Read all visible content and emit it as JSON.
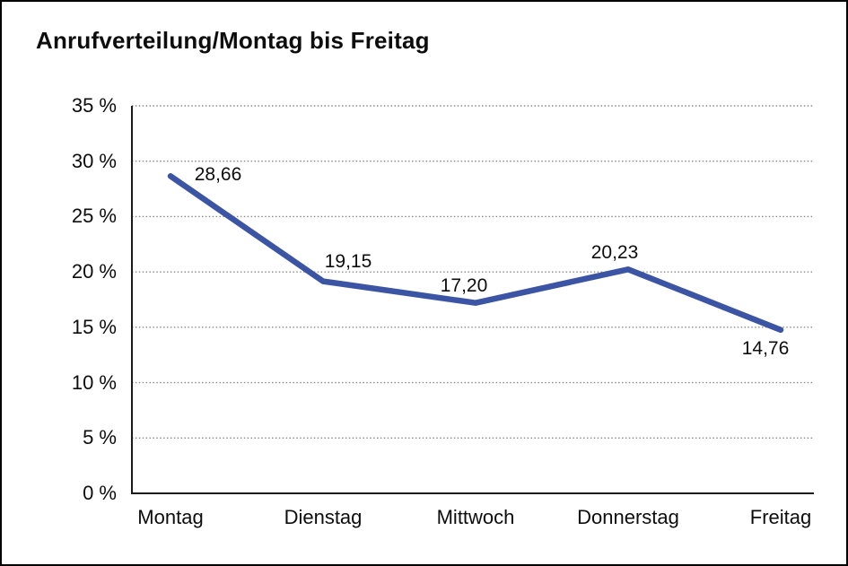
{
  "window": {
    "background": "#ffffff",
    "frame_border_color": "#000000"
  },
  "chart_data": {
    "type": "line",
    "title": "Anrufverteilung/Montag bis Freitag",
    "categories": [
      "Montag",
      "Dienstag",
      "Mittwoch",
      "Donnerstag",
      "Freitag"
    ],
    "series": [
      {
        "name": "Anrufverteilung",
        "values": [
          28.66,
          19.15,
          17.2,
          20.23,
          14.76
        ]
      }
    ],
    "value_labels": [
      "28,66",
      "19,15",
      "17,20",
      "20,23",
      "14,76"
    ],
    "xlabel": "",
    "ylabel": "",
    "ylim": [
      0,
      35
    ],
    "ytick_step": 5,
    "ytick_labels": [
      "0 %",
      "5 %",
      "10 %",
      "15 %",
      "20 %",
      "25 %",
      "30 %",
      "35 %"
    ],
    "grid": "horizontal-dotted",
    "legend": "none",
    "line_color": "#3B55A4",
    "axis_color": "#1a1a1a",
    "grid_color": "#8a8a8a",
    "text_color": "#0d0d0d"
  }
}
